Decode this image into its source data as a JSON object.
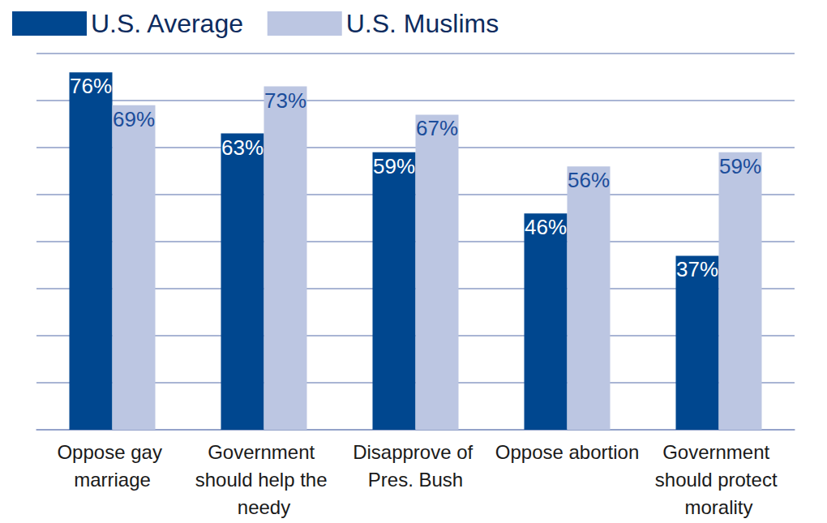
{
  "chart_data": {
    "type": "bar",
    "categories": [
      "Oppose gay marriage",
      "Government should help the needy",
      "Disapprove of Pres. Bush",
      "Oppose abortion",
      "Government should protect morality"
    ],
    "series": [
      {
        "name": "U.S. Average",
        "color": "#00478f",
        "values": [
          76,
          63,
          59,
          46,
          37
        ],
        "value_labels": [
          "76%",
          "63%",
          "59%",
          "46%",
          "37%"
        ]
      },
      {
        "name": "U.S. Muslims",
        "color": "#bcc6e2",
        "values": [
          69,
          73,
          67,
          56,
          59
        ],
        "value_labels": [
          "69%",
          "73%",
          "67%",
          "56%",
          "59%"
        ]
      }
    ],
    "ylim": [
      0,
      80
    ],
    "yticks": [
      0,
      10,
      20,
      30,
      40,
      50,
      60,
      70,
      80
    ],
    "grid": true,
    "legend": "upper left",
    "data_labels": true,
    "tick_labels": "x"
  }
}
